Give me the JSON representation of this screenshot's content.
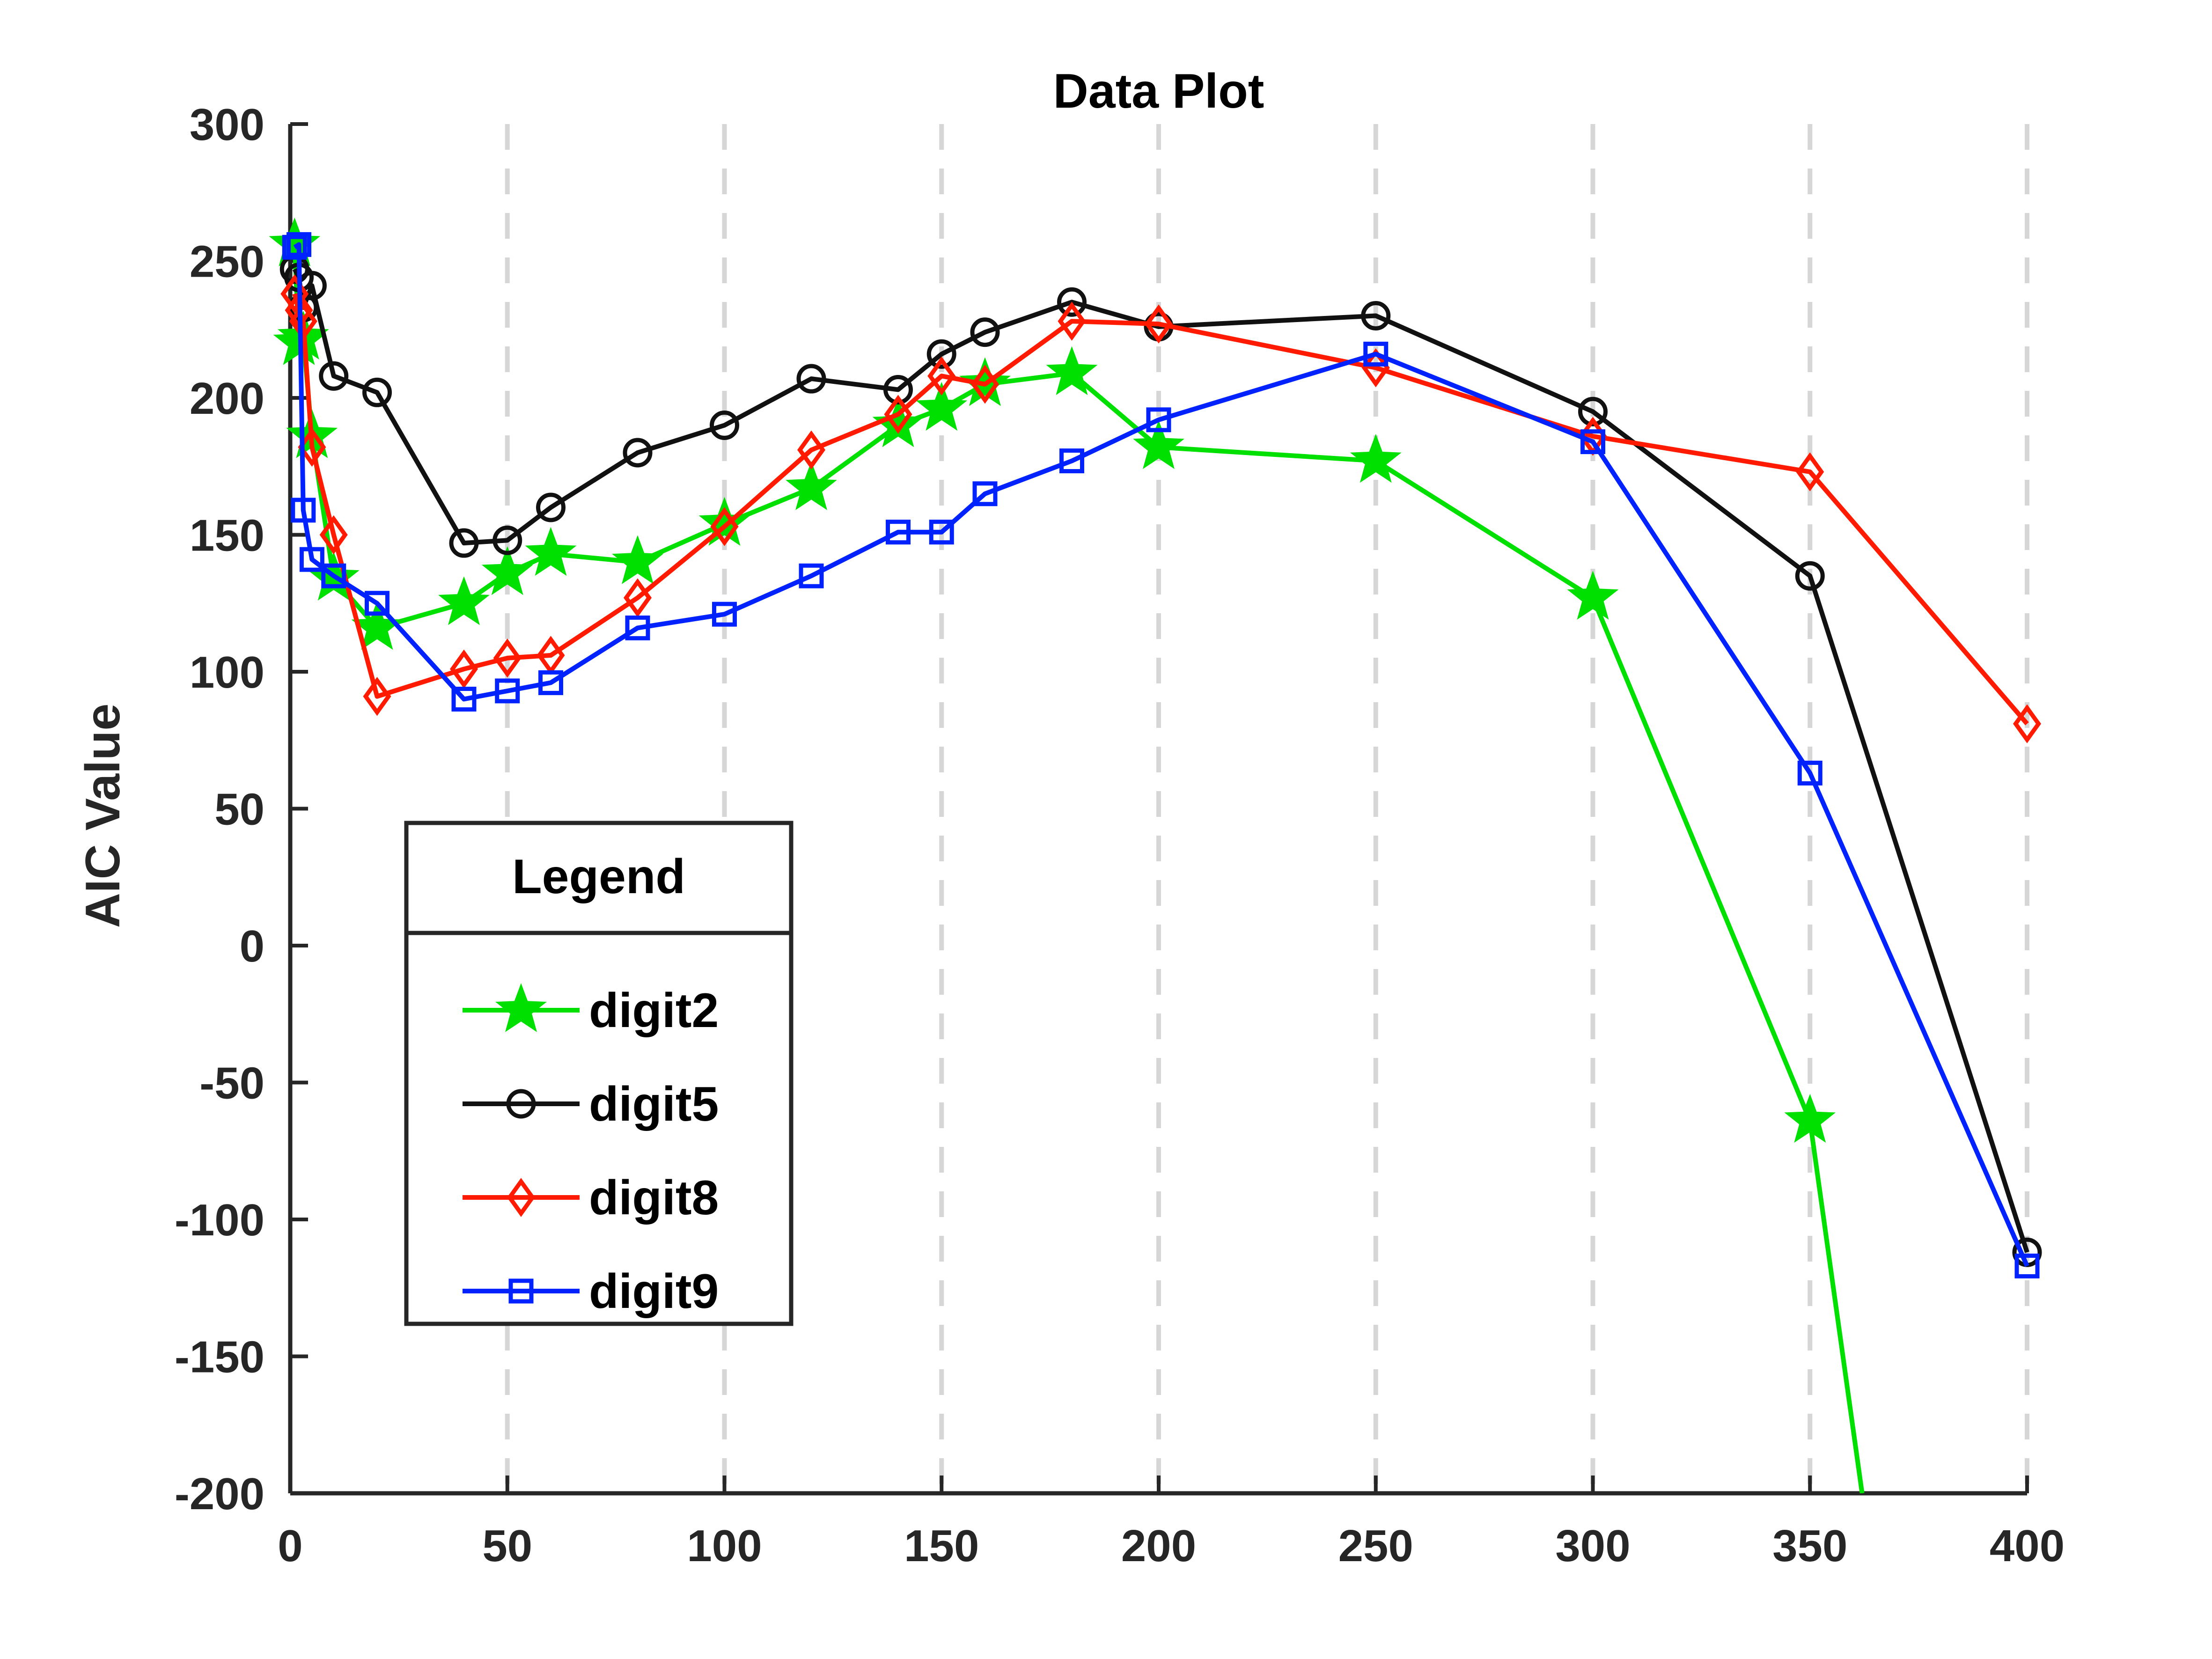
{
  "chart_data": {
    "type": "line",
    "title": "Data Plot",
    "xlabel": "",
    "ylabel": "AIC Value",
    "xlim": [
      0,
      400
    ],
    "ylim": [
      -200,
      300
    ],
    "xticks": [
      0,
      50,
      100,
      150,
      200,
      250,
      300,
      350,
      400
    ],
    "yticks": [
      -200,
      -150,
      -100,
      -50,
      0,
      50,
      100,
      150,
      200,
      250,
      300
    ],
    "grid": "vertical dashed at x ticks",
    "legend": {
      "title": "Legend",
      "placement": "lower-left"
    },
    "series": [
      {
        "name": "digit2",
        "color": "#00e000",
        "marker": "star",
        "x": [
          1,
          2,
          3,
          5,
          10,
          20,
          40,
          50,
          60,
          80,
          100,
          120,
          140,
          150,
          160,
          180,
          200,
          250,
          300,
          350,
          362
        ],
        "y": [
          256,
          220,
          222,
          186,
          134,
          116,
          125,
          136,
          143,
          140,
          154,
          167,
          190,
          196,
          205,
          209,
          182,
          177,
          127,
          -64,
          -200
        ]
      },
      {
        "name": "digit5",
        "color": "#111111",
        "marker": "circle",
        "x": [
          1,
          2,
          3,
          5,
          10,
          20,
          40,
          50,
          60,
          80,
          100,
          120,
          140,
          150,
          160,
          180,
          200,
          250,
          300,
          350,
          400
        ],
        "y": [
          247,
          244,
          233,
          241,
          208,
          202,
          147,
          148,
          160,
          180,
          190,
          207,
          203,
          216,
          224,
          235,
          226,
          230,
          195,
          135,
          -112
        ]
      },
      {
        "name": "digit8",
        "color": "#ff1a00",
        "marker": "diamond",
        "x": [
          1,
          2,
          3,
          5,
          10,
          20,
          40,
          50,
          60,
          80,
          100,
          120,
          140,
          150,
          160,
          180,
          200,
          250,
          300,
          350,
          400
        ],
        "y": [
          238,
          232,
          228,
          182,
          150,
          91,
          101,
          105,
          106,
          127,
          153,
          181,
          194,
          208,
          205,
          228,
          227,
          211,
          186,
          173,
          81
        ]
      },
      {
        "name": "digit9",
        "color": "#0022ff",
        "marker": "square",
        "x": [
          1,
          2,
          3,
          5,
          10,
          20,
          40,
          50,
          60,
          80,
          100,
          120,
          140,
          150,
          160,
          180,
          200,
          250,
          300,
          350,
          400
        ],
        "y": [
          255,
          256,
          159,
          141,
          135,
          125,
          90,
          93,
          96,
          116,
          121,
          135,
          151,
          151,
          165,
          177,
          192,
          216,
          184,
          63,
          -117
        ]
      }
    ]
  }
}
